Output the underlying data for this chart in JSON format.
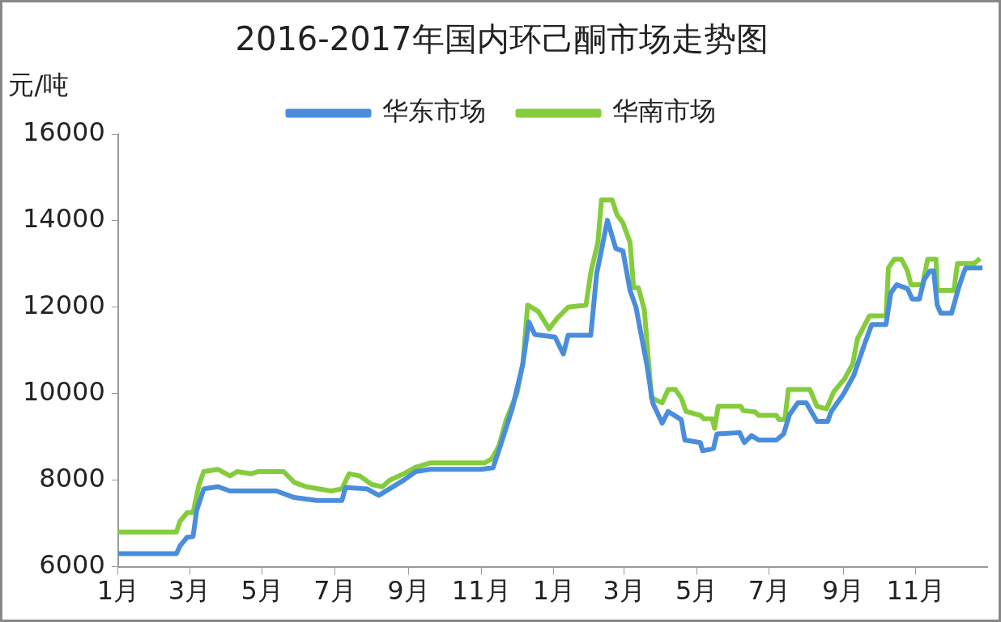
{
  "chart_data": {
    "type": "line",
    "title": "2016-2017年国内环己酮市场走势图",
    "ylabel": "元/吨",
    "xlim": [
      "2016-01-01",
      "2017-12-31"
    ],
    "xticks": [
      {
        "value": "2016-01",
        "label": "1月"
      },
      {
        "value": "2016-03",
        "label": "3月"
      },
      {
        "value": "2016-05",
        "label": "5月"
      },
      {
        "value": "2016-07",
        "label": "7月"
      },
      {
        "value": "2016-09",
        "label": "9月"
      },
      {
        "value": "2016-11",
        "label": "11月"
      },
      {
        "value": "2017-01",
        "label": "1月"
      },
      {
        "value": "2017-03",
        "label": "3月"
      },
      {
        "value": "2017-05",
        "label": "5月"
      },
      {
        "value": "2017-07",
        "label": "7月"
      },
      {
        "value": "2017-09",
        "label": "9月"
      },
      {
        "value": "2017-11",
        "label": "11月"
      }
    ],
    "ylim": [
      6000,
      16000
    ],
    "yticks": [
      6000,
      8000,
      10000,
      12000,
      14000,
      16000
    ],
    "grid": false,
    "legend": "top",
    "marker": "none",
    "line_style": "solid",
    "series": [
      {
        "name": "华东市场",
        "color": "#4a8ddc",
        "x": [
          "2016-01-01",
          "2016-02-19",
          "2016-02-22",
          "2016-02-28",
          "2016-03-04",
          "2016-03-07",
          "2016-03-13",
          "2016-03-25",
          "2016-04-04",
          "2016-05-13",
          "2016-05-28",
          "2016-06-16",
          "2016-07-07",
          "2016-07-10",
          "2016-07-28",
          "2016-08-07",
          "2016-08-16",
          "2016-08-28",
          "2016-09-07",
          "2016-09-19",
          "2016-11-01",
          "2016-11-11",
          "2016-11-18",
          "2016-11-27",
          "2016-12-06",
          "2016-12-11",
          "2016-12-16",
          "2017-01-02",
          "2017-01-09",
          "2017-01-13",
          "2017-02-01",
          "2017-02-06",
          "2017-02-15",
          "2017-02-22",
          "2017-02-28",
          "2017-03-06",
          "2017-03-11",
          "2017-03-20",
          "2017-03-25",
          "2017-04-02",
          "2017-04-07",
          "2017-04-18",
          "2017-04-21",
          "2017-05-04",
          "2017-05-06",
          "2017-05-15",
          "2017-05-18",
          "2017-06-06",
          "2017-06-10",
          "2017-06-16",
          "2017-06-22",
          "2017-07-07",
          "2017-07-13",
          "2017-07-18",
          "2017-07-25",
          "2017-08-01",
          "2017-08-10",
          "2017-08-19",
          "2017-08-22",
          "2017-09-01",
          "2017-09-10",
          "2017-09-19",
          "2017-09-25",
          "2017-10-07",
          "2017-10-11",
          "2017-10-16",
          "2017-10-25",
          "2017-10-29",
          "2017-11-04",
          "2017-11-08",
          "2017-11-13",
          "2017-11-16",
          "2017-11-19",
          "2017-11-22",
          "2017-12-01",
          "2017-12-07",
          "2017-12-11",
          "2017-12-13",
          "2017-12-27"
        ],
        "values": [
          6300,
          6300,
          6480,
          6680,
          6700,
          7300,
          7800,
          7850,
          7750,
          7750,
          7600,
          7530,
          7530,
          7830,
          7800,
          7650,
          7800,
          8000,
          8200,
          8250,
          8250,
          8290,
          8870,
          9650,
          10690,
          11660,
          11370,
          11310,
          10920,
          11350,
          11350,
          12780,
          14010,
          13360,
          13300,
          12390,
          12000,
          10690,
          9790,
          9320,
          9590,
          9400,
          8930,
          8870,
          8680,
          8730,
          9070,
          9100,
          8870,
          9030,
          8930,
          8930,
          9070,
          9520,
          9790,
          9790,
          9360,
          9360,
          9590,
          9980,
          10430,
          11150,
          11600,
          11600,
          12330,
          12520,
          12430,
          12190,
          12190,
          12640,
          12840,
          12840,
          12050,
          11860,
          11860,
          12450,
          12780,
          12910,
          12910
        ]
      },
      {
        "name": "华南市场",
        "color": "#84cc3c",
        "x": [
          "2016-01-01",
          "2016-02-19",
          "2016-02-22",
          "2016-02-28",
          "2016-03-04",
          "2016-03-09",
          "2016-03-13",
          "2016-03-25",
          "2016-04-04",
          "2016-04-10",
          "2016-04-22",
          "2016-04-28",
          "2016-05-19",
          "2016-05-28",
          "2016-06-07",
          "2016-06-28",
          "2016-07-07",
          "2016-07-13",
          "2016-07-22",
          "2016-08-01",
          "2016-08-10",
          "2016-08-16",
          "2016-08-28",
          "2016-09-07",
          "2016-09-19",
          "2016-11-04",
          "2016-11-10",
          "2016-11-16",
          "2016-11-22",
          "2016-12-01",
          "2016-12-06",
          "2016-12-10",
          "2016-12-19",
          "2016-12-28",
          "2017-01-04",
          "2017-01-13",
          "2017-01-28",
          "2017-02-01",
          "2017-02-07",
          "2017-02-10",
          "2017-02-19",
          "2017-02-23",
          "2017-02-28",
          "2017-03-06",
          "2017-03-09",
          "2017-03-13",
          "2017-03-18",
          "2017-03-24",
          "2017-04-02",
          "2017-04-07",
          "2017-04-13",
          "2017-04-18",
          "2017-04-22",
          "2017-05-04",
          "2017-05-07",
          "2017-05-14",
          "2017-05-16",
          "2017-05-19",
          "2017-06-07",
          "2017-06-09",
          "2017-06-19",
          "2017-06-22",
          "2017-07-07",
          "2017-07-09",
          "2017-07-14",
          "2017-07-17",
          "2017-08-04",
          "2017-08-10",
          "2017-08-18",
          "2017-08-24",
          "2017-09-02",
          "2017-09-09",
          "2017-09-13",
          "2017-09-23",
          "2017-10-07",
          "2017-10-09",
          "2017-10-14",
          "2017-10-20",
          "2017-10-25",
          "2017-10-28",
          "2017-11-07",
          "2017-11-08",
          "2017-11-11",
          "2017-11-18",
          "2017-11-19",
          "2017-12-03",
          "2017-12-06",
          "2017-12-20",
          "2017-12-25"
        ],
        "values": [
          6800,
          6800,
          7050,
          7250,
          7250,
          7900,
          8200,
          8250,
          8100,
          8200,
          8150,
          8200,
          8200,
          7950,
          7850,
          7750,
          7800,
          8150,
          8100,
          7900,
          7850,
          8000,
          8150,
          8300,
          8400,
          8400,
          8500,
          8800,
          9400,
          10000,
          10700,
          12050,
          11900,
          11500,
          11750,
          12000,
          12050,
          12800,
          13500,
          14480,
          14480,
          14140,
          13950,
          13500,
          12450,
          12450,
          11940,
          9900,
          9790,
          10100,
          10100,
          9900,
          9590,
          9500,
          9420,
          9420,
          9200,
          9710,
          9710,
          9610,
          9580,
          9500,
          9500,
          9400,
          9400,
          10100,
          10100,
          9710,
          9650,
          10040,
          10340,
          10690,
          11270,
          11800,
          11800,
          12910,
          13110,
          13110,
          12840,
          12520,
          12520,
          12720,
          13110,
          13110,
          12390,
          12390,
          13010,
          13010,
          13130
        ]
      }
    ]
  }
}
